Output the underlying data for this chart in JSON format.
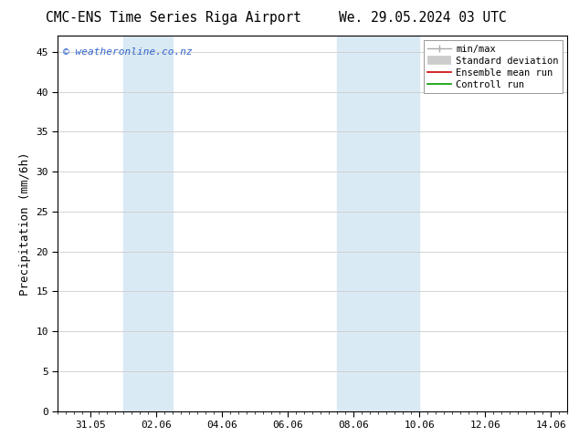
{
  "title": "CMC-ENS Time Series Riga Airport",
  "title2": "We. 29.05.2024 03 UTC",
  "ylabel": "Precipitation (mm/6h)",
  "ylim": [
    0,
    47
  ],
  "yticks": [
    0,
    5,
    10,
    15,
    20,
    25,
    30,
    35,
    40,
    45
  ],
  "xlim": [
    0.0,
    15.5
  ],
  "xtick_labels": [
    "31.05",
    "02.06",
    "04.06",
    "06.06",
    "08.06",
    "10.06",
    "12.06",
    "14.06"
  ],
  "xtick_positions": [
    1.0,
    3.0,
    5.0,
    7.0,
    9.0,
    11.0,
    13.0,
    15.0
  ],
  "shaded_regions": [
    {
      "xstart": 2.0,
      "xend": 3.5,
      "color": "#daeaf5"
    },
    {
      "xstart": 8.5,
      "xend": 11.0,
      "color": "#daeaf5"
    }
  ],
  "watermark": "© weatheronline.co.nz",
  "legend_labels": [
    "min/max",
    "Standard deviation",
    "Ensemble mean run",
    "Controll run"
  ],
  "legend_colors": [
    "#aaaaaa",
    "#cccccc",
    "#cc0000",
    "#009900"
  ],
  "background_color": "#ffffff",
  "grid_color": "#cccccc",
  "title_fontsize": 10.5,
  "tick_fontsize": 8,
  "ylabel_fontsize": 9,
  "legend_fontsize": 7.5,
  "watermark_fontsize": 8,
  "fig_width": 6.34,
  "fig_height": 4.9,
  "dpi": 100
}
